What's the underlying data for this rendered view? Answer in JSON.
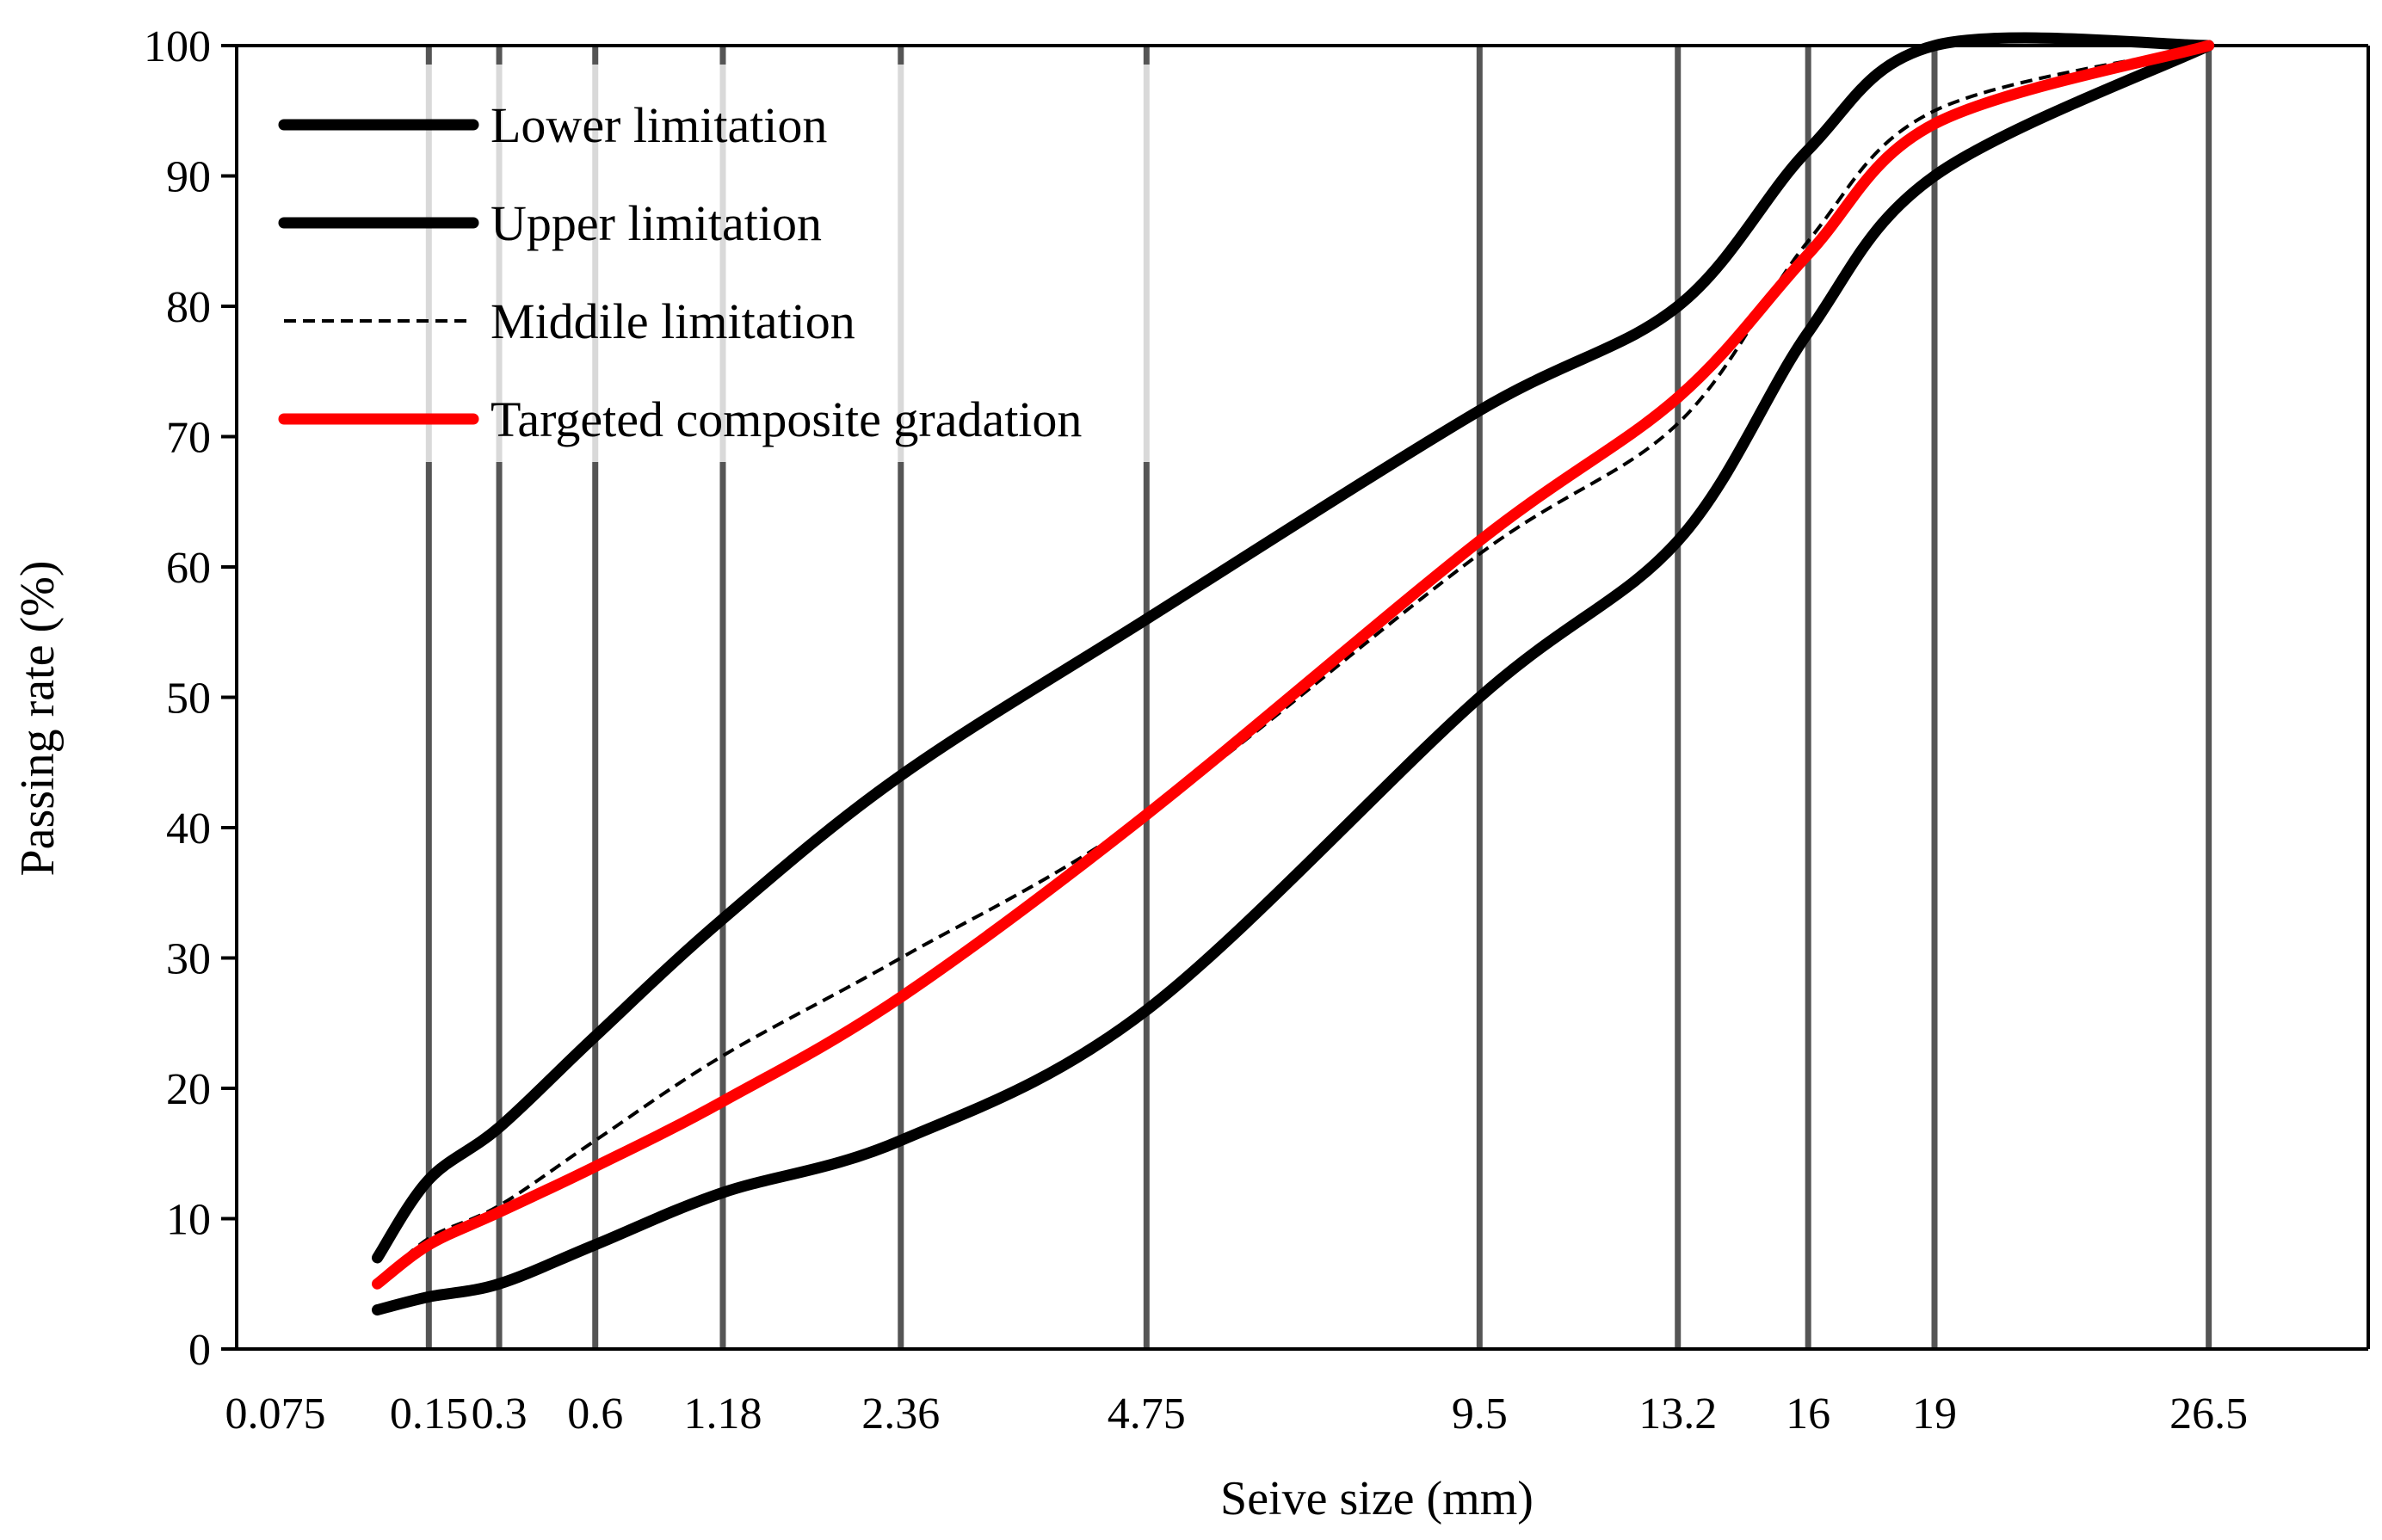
{
  "chart_data": {
    "type": "line",
    "title": "",
    "xlabel": "Seive size (mm)",
    "ylabel": "Passing rate (%)",
    "ylim": [
      0,
      100
    ],
    "yticks": [
      0,
      10,
      20,
      30,
      40,
      50,
      60,
      70,
      80,
      90,
      100
    ],
    "categories": [
      "0.075",
      "0.15",
      "0.3",
      "0.6",
      "1.18",
      "2.36",
      "4.75",
      "9.5",
      "13.2",
      "16",
      "19",
      "26.5"
    ],
    "x_scale_note": "x axis is a power scale (sieve size ^ 0.45)",
    "x_ref_max": 31.5,
    "grid": "vertical lines at each sieve size",
    "legend_position": "top-left",
    "series": [
      {
        "name": "Lower limitation",
        "color": "#000000",
        "style": "solid-thick",
        "points": [
          [
            0.075,
            3
          ],
          [
            0.15,
            4
          ],
          [
            0.3,
            5
          ],
          [
            0.6,
            8
          ],
          [
            1.18,
            12
          ],
          [
            2.36,
            16
          ],
          [
            4.75,
            26
          ],
          [
            9.5,
            50
          ],
          [
            13.2,
            62
          ],
          [
            16,
            78
          ],
          [
            19,
            90
          ],
          [
            26.5,
            100
          ]
        ]
      },
      {
        "name": "Upper limitation",
        "color": "#000000",
        "style": "solid-thick",
        "points": [
          [
            0.075,
            7
          ],
          [
            0.15,
            13
          ],
          [
            0.3,
            17
          ],
          [
            0.6,
            24
          ],
          [
            1.18,
            33
          ],
          [
            2.36,
            44
          ],
          [
            4.75,
            56
          ],
          [
            9.5,
            72
          ],
          [
            13.2,
            80
          ],
          [
            16,
            92
          ],
          [
            19,
            100
          ],
          [
            26.5,
            100
          ]
        ]
      },
      {
        "name": "Middile limitation",
        "color": "#000000",
        "style": "dashed",
        "points": [
          [
            0.075,
            5
          ],
          [
            0.15,
            8.5
          ],
          [
            0.3,
            11
          ],
          [
            0.6,
            16
          ],
          [
            1.18,
            22.5
          ],
          [
            2.36,
            30
          ],
          [
            4.75,
            41
          ],
          [
            9.5,
            61
          ],
          [
            13.2,
            71
          ],
          [
            16,
            85
          ],
          [
            19,
            95
          ],
          [
            26.5,
            100
          ]
        ]
      },
      {
        "name": "Targeted composite gradation",
        "color": "#ff0000",
        "style": "solid-thick",
        "points": [
          [
            0.075,
            5
          ],
          [
            0.15,
            8
          ],
          [
            0.3,
            10.5
          ],
          [
            0.6,
            14
          ],
          [
            1.18,
            19
          ],
          [
            2.36,
            27
          ],
          [
            4.75,
            41
          ],
          [
            9.5,
            62
          ],
          [
            13.2,
            73
          ],
          [
            16,
            84
          ],
          [
            19,
            94
          ],
          [
            26.5,
            100
          ]
        ]
      }
    ]
  }
}
